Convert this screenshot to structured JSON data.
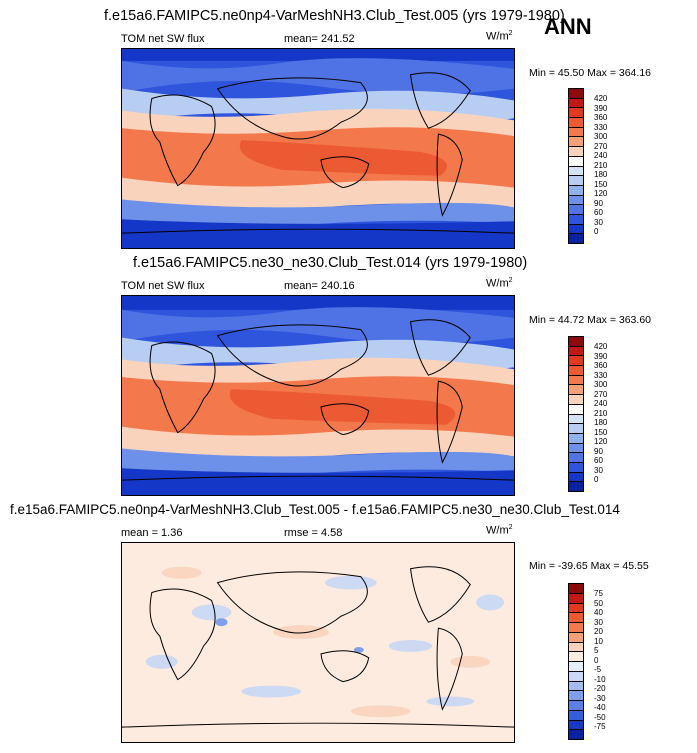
{
  "season": "ANN",
  "panels": [
    {
      "title": "f.e15a6.FAMIPC5.ne0np4-VarMeshNH3.Club_Test.005 (yrs 1979-1980)",
      "left_label": "TOM net SW flux",
      "center_label": "mean= 241.52",
      "units": "W/m",
      "units_sup": "2",
      "minmax": "Min = 45.50 Max = 364.16",
      "colorbar_labels": [
        "420",
        "390",
        "360",
        "330",
        "300",
        "270",
        "240",
        "210",
        "180",
        "150",
        "120",
        "90",
        "60",
        "30",
        "0"
      ],
      "colorbar_colors": [
        "#8b0a0a",
        "#c01a12",
        "#e0391f",
        "#ec5a33",
        "#f3784b",
        "#f6a07a",
        "#fad3bd",
        "#ffffff",
        "#d6e4f8",
        "#b8cdf2",
        "#91b0ec",
        "#6d90e8",
        "#4f72e5",
        "#2f55dc",
        "#1537c7",
        "#0a22a0"
      ]
    },
    {
      "title": "f.e15a6.FAMIPC5.ne30_ne30.Club_Test.014 (yrs 1979-1980)",
      "left_label": "TOM net SW flux",
      "center_label": "mean= 240.16",
      "units": "W/m",
      "units_sup": "2",
      "minmax": "Min = 44.72 Max = 363.60",
      "colorbar_labels": [
        "420",
        "390",
        "360",
        "330",
        "300",
        "270",
        "240",
        "210",
        "180",
        "150",
        "120",
        "90",
        "60",
        "30",
        "0"
      ],
      "colorbar_colors": [
        "#8b0a0a",
        "#c01a12",
        "#e0391f",
        "#ec5a33",
        "#f3784b",
        "#f6a07a",
        "#fad3bd",
        "#ffffff",
        "#d6e4f8",
        "#b8cdf2",
        "#91b0ec",
        "#6d90e8",
        "#4f72e5",
        "#2f55dc",
        "#1537c7",
        "#0a22a0"
      ]
    },
    {
      "title": "f.e15a6.FAMIPC5.ne0np4-VarMeshNH3.Club_Test.005 - f.e15a6.FAMIPC5.ne30_ne30.Club_Test.014",
      "left_label": "mean = 1.36",
      "center_label": "rmse = 4.58",
      "units": "W/m",
      "units_sup": "2",
      "minmax": "Min = -39.65 Max = 45.55",
      "colorbar_labels": [
        "75",
        "50",
        "40",
        "30",
        "20",
        "10",
        "5",
        "0",
        "-5",
        "-10",
        "-20",
        "-30",
        "-40",
        "-50",
        "-75"
      ],
      "colorbar_colors": [
        "#8b0a0a",
        "#c01a12",
        "#e0391f",
        "#ec5a33",
        "#f3784b",
        "#f6a07a",
        "#fad3bd",
        "#fdebe0",
        "#e6eefb",
        "#c8d8f5",
        "#a3bdf0",
        "#7f9fea",
        "#5a80e6",
        "#355edd",
        "#1839c4",
        "#0a22a0"
      ]
    }
  ]
}
